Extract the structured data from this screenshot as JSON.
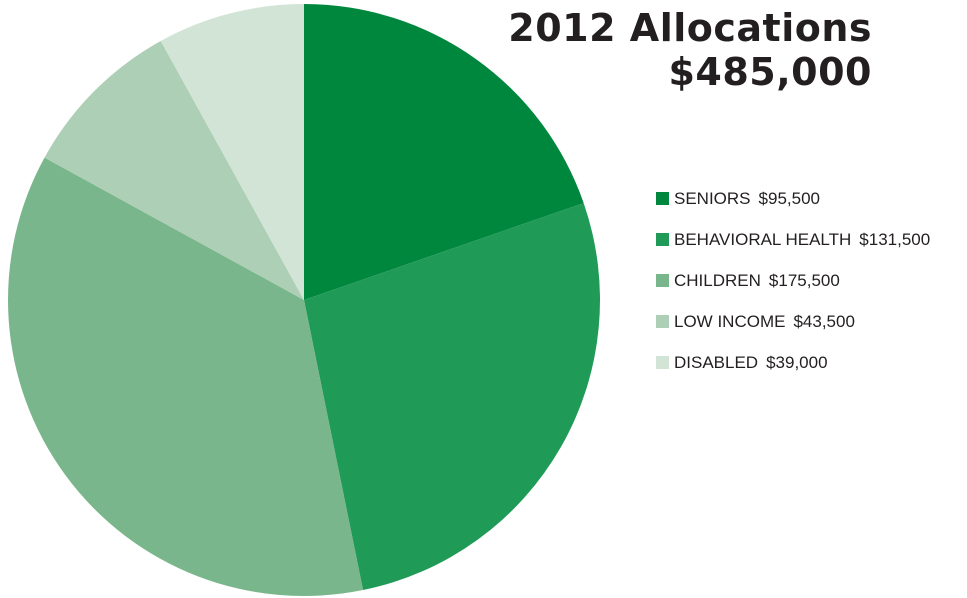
{
  "title": {
    "line1": "2012 Allocations",
    "line2": "$485,000"
  },
  "chart_data": {
    "type": "pie",
    "title": "2012 Allocations",
    "subtitle": "$485,000",
    "legend_position": "right",
    "slices": [
      {
        "label": "SENIORS",
        "amount_label": "$95,500",
        "value": 95500,
        "color": "#00873e"
      },
      {
        "label": "BEHAVIORAL HEALTH",
        "amount_label": "$131,500",
        "value": 131500,
        "color": "#209a57"
      },
      {
        "label": "CHILDREN",
        "amount_label": "$175,500",
        "value": 175500,
        "color": "#7ab68b"
      },
      {
        "label": "LOW INCOME",
        "amount_label": "$43,500",
        "value": 43500,
        "color": "#accfb5"
      },
      {
        "label": "DISABLED",
        "amount_label": "$39,000",
        "value": 39000,
        "color": "#d1e4d6"
      }
    ]
  }
}
